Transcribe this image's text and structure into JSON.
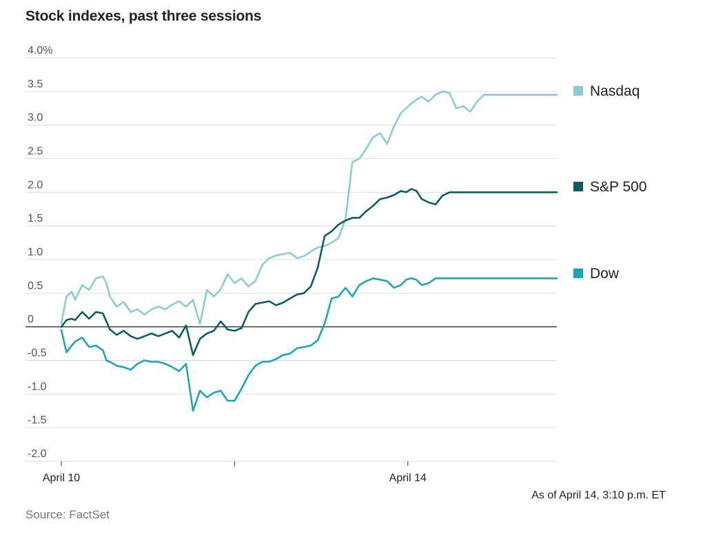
{
  "title": "Stock indexes, past three sessions",
  "note": "As of April 14, 3:10 p.m. ET",
  "source": "Source: FactSet",
  "chart_data": {
    "type": "line",
    "ylim": [
      -2.0,
      4.0
    ],
    "y_ticks": [
      {
        "value": 4.0,
        "label": "4.0%"
      },
      {
        "value": 3.5,
        "label": "3.5"
      },
      {
        "value": 3.0,
        "label": "3.0"
      },
      {
        "value": 2.5,
        "label": "2.5"
      },
      {
        "value": 2.0,
        "label": "2.0"
      },
      {
        "value": 1.5,
        "label": "1.5"
      },
      {
        "value": 1.0,
        "label": "1.0"
      },
      {
        "value": 0.5,
        "label": "0.5"
      },
      {
        "value": 0,
        "label": "0"
      },
      {
        "value": -0.5,
        "label": "-0.5"
      },
      {
        "value": -1.0,
        "label": "-1.0"
      },
      {
        "value": -1.5,
        "label": "-1.5"
      },
      {
        "value": -2.0,
        "label": "-2.0"
      }
    ],
    "x_range": [
      0,
      2.86
    ],
    "x_ticks": [
      {
        "x": 0,
        "label": "April 10"
      },
      {
        "x": 1,
        "label": ""
      },
      {
        "x": 2,
        "label": "April 14"
      }
    ],
    "grid": true,
    "legend": "right",
    "series": [
      {
        "name": "Nasdaq",
        "color": "#8bcbd8",
        "x": [
          0,
          0.03,
          0.06,
          0.08,
          0.12,
          0.16,
          0.2,
          0.24,
          0.26,
          0.28,
          0.32,
          0.36,
          0.4,
          0.44,
          0.48,
          0.52,
          0.56,
          0.6,
          0.64,
          0.68,
          0.72,
          0.76,
          0.8,
          0.84,
          0.88,
          0.92,
          0.96,
          1.0,
          1.04,
          1.08,
          1.12,
          1.16,
          1.2,
          1.24,
          1.28,
          1.32,
          1.36,
          1.4,
          1.44,
          1.48,
          1.52,
          1.56,
          1.6,
          1.64,
          1.68,
          1.72,
          1.76,
          1.8,
          1.84,
          1.88,
          1.92,
          1.96,
          1.99,
          2.02,
          2.05,
          2.08,
          2.12,
          2.16,
          2.2,
          2.24,
          2.28,
          2.32,
          2.36,
          2.4,
          2.44,
          2.48,
          2.52,
          2.56,
          2.6,
          2.64,
          2.68,
          2.72,
          2.76,
          2.8,
          2.84,
          2.86
        ],
        "values": [
          0.05,
          0.45,
          0.52,
          0.4,
          0.62,
          0.55,
          0.72,
          0.75,
          0.65,
          0.45,
          0.3,
          0.37,
          0.22,
          0.26,
          0.18,
          0.26,
          0.3,
          0.26,
          0.33,
          0.38,
          0.3,
          0.4,
          0.04,
          0.55,
          0.45,
          0.56,
          0.78,
          0.65,
          0.72,
          0.6,
          0.68,
          0.92,
          1.02,
          1.06,
          1.08,
          1.1,
          1.02,
          1.05,
          1.12,
          1.18,
          1.2,
          1.25,
          1.32,
          1.6,
          2.45,
          2.5,
          2.65,
          2.82,
          2.88,
          2.72,
          2.98,
          3.18,
          3.25,
          3.32,
          3.38,
          3.42,
          3.35,
          3.45,
          3.5,
          3.48,
          3.25,
          3.28,
          3.2,
          3.35,
          3.45,
          3.45,
          3.45,
          3.45,
          3.45,
          3.45,
          3.45,
          3.45,
          3.45,
          3.45,
          3.45,
          3.45
        ]
      },
      {
        "name": "S&P 500",
        "color": "#0b5d64",
        "x": [
          0,
          0.03,
          0.06,
          0.08,
          0.12,
          0.16,
          0.2,
          0.24,
          0.26,
          0.28,
          0.32,
          0.36,
          0.4,
          0.44,
          0.48,
          0.52,
          0.56,
          0.6,
          0.64,
          0.68,
          0.72,
          0.76,
          0.8,
          0.84,
          0.88,
          0.92,
          0.96,
          1.0,
          1.04,
          1.08,
          1.12,
          1.16,
          1.2,
          1.24,
          1.28,
          1.32,
          1.36,
          1.4,
          1.44,
          1.48,
          1.52,
          1.56,
          1.6,
          1.64,
          1.68,
          1.72,
          1.76,
          1.8,
          1.84,
          1.88,
          1.92,
          1.96,
          1.99,
          2.02,
          2.05,
          2.08,
          2.12,
          2.16,
          2.2,
          2.24,
          2.28,
          2.32,
          2.36,
          2.4,
          2.44,
          2.48,
          2.52,
          2.56,
          2.6,
          2.64,
          2.68,
          2.72,
          2.76,
          2.8,
          2.84,
          2.86
        ],
        "values": [
          0.0,
          0.1,
          0.12,
          0.1,
          0.22,
          0.12,
          0.22,
          0.2,
          0.08,
          -0.04,
          -0.12,
          -0.06,
          -0.14,
          -0.18,
          -0.14,
          -0.1,
          -0.14,
          -0.1,
          -0.06,
          -0.16,
          0.02,
          -0.42,
          -0.18,
          -0.1,
          -0.06,
          0.08,
          -0.04,
          -0.06,
          -0.02,
          0.22,
          0.34,
          0.36,
          0.38,
          0.32,
          0.36,
          0.42,
          0.48,
          0.5,
          0.6,
          0.88,
          1.35,
          1.42,
          1.52,
          1.58,
          1.62,
          1.62,
          1.72,
          1.8,
          1.9,
          1.92,
          1.96,
          2.02,
          2.0,
          2.05,
          2.02,
          1.9,
          1.85,
          1.82,
          1.95,
          2.0,
          2.0,
          2.0,
          2.0,
          2.0,
          2.0,
          2.0,
          2.0,
          2.0,
          2.0,
          2.0,
          2.0,
          2.0,
          2.0,
          2.0,
          2.0,
          2.0
        ]
      },
      {
        "name": "Dow",
        "color": "#1aa6b7",
        "x": [
          0,
          0.03,
          0.06,
          0.08,
          0.12,
          0.16,
          0.2,
          0.24,
          0.26,
          0.28,
          0.32,
          0.36,
          0.4,
          0.44,
          0.48,
          0.52,
          0.56,
          0.6,
          0.64,
          0.68,
          0.72,
          0.76,
          0.8,
          0.84,
          0.88,
          0.92,
          0.96,
          1.0,
          1.04,
          1.08,
          1.12,
          1.16,
          1.2,
          1.24,
          1.28,
          1.32,
          1.36,
          1.4,
          1.44,
          1.48,
          1.52,
          1.56,
          1.6,
          1.64,
          1.68,
          1.72,
          1.76,
          1.8,
          1.84,
          1.88,
          1.92,
          1.96,
          1.99,
          2.02,
          2.05,
          2.08,
          2.12,
          2.16,
          2.2,
          2.24,
          2.28,
          2.32,
          2.36,
          2.4,
          2.44,
          2.48,
          2.52,
          2.56,
          2.6,
          2.64,
          2.68,
          2.72,
          2.76,
          2.8,
          2.84,
          2.86
        ],
        "values": [
          -0.05,
          -0.38,
          -0.28,
          -0.22,
          -0.16,
          -0.3,
          -0.28,
          -0.35,
          -0.5,
          -0.52,
          -0.58,
          -0.6,
          -0.64,
          -0.55,
          -0.5,
          -0.52,
          -0.52,
          -0.55,
          -0.6,
          -0.66,
          -0.55,
          -1.25,
          -0.95,
          -1.05,
          -0.98,
          -0.95,
          -1.1,
          -1.1,
          -0.92,
          -0.72,
          -0.58,
          -0.52,
          -0.52,
          -0.48,
          -0.42,
          -0.4,
          -0.32,
          -0.3,
          -0.28,
          -0.2,
          0.05,
          0.42,
          0.45,
          0.58,
          0.45,
          0.62,
          0.68,
          0.72,
          0.7,
          0.68,
          0.58,
          0.62,
          0.7,
          0.72,
          0.7,
          0.62,
          0.65,
          0.72,
          0.72,
          0.72,
          0.72,
          0.72,
          0.72,
          0.72,
          0.72,
          0.72,
          0.72,
          0.72,
          0.72,
          0.72,
          0.72,
          0.72,
          0.72,
          0.72,
          0.72,
          0.72
        ]
      }
    ]
  }
}
